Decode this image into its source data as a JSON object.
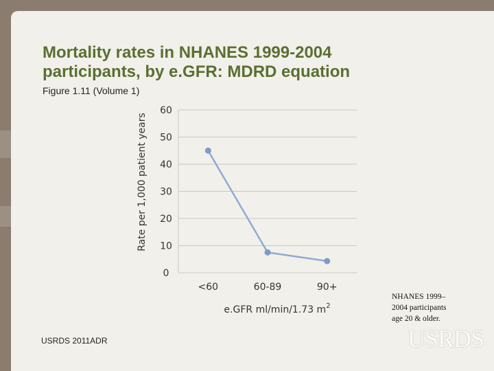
{
  "slide": {
    "title_line1": "Mortality rates in NHANES 1999-2004",
    "title_line2": "participants, by e.GFR: MDRD equation",
    "subtitle": "Figure 1.11 (Volume 1)",
    "note_line1": "NHANES 1999–",
    "note_line2": "2004 participants",
    "note_line3": "age 20 & older.",
    "footer": "USRDS 2011ADR",
    "logo_text": "USRDS"
  },
  "colors": {
    "title": "#5a6f32",
    "line": "#8faad6",
    "marker": "#7d9ac8",
    "grid": "#c8c8c8",
    "axis_text": "#333333"
  },
  "chart_data": {
    "type": "line",
    "title": "",
    "xlabel": "e.GFR ml/min/1.73 m²",
    "xlabel_base": "e.GFR ml/min/1.73 m",
    "xlabel_sup": "2",
    "ylabel": "Rate per 1,000 patient years",
    "categories": [
      "<60",
      "60-89",
      "90+"
    ],
    "series": [
      {
        "name": "Mortality rate",
        "values": [
          45,
          7.5,
          4.3
        ]
      }
    ],
    "ylim": [
      0,
      60
    ],
    "yticks": [
      0,
      10,
      20,
      30,
      40,
      50,
      60
    ],
    "grid": true
  }
}
